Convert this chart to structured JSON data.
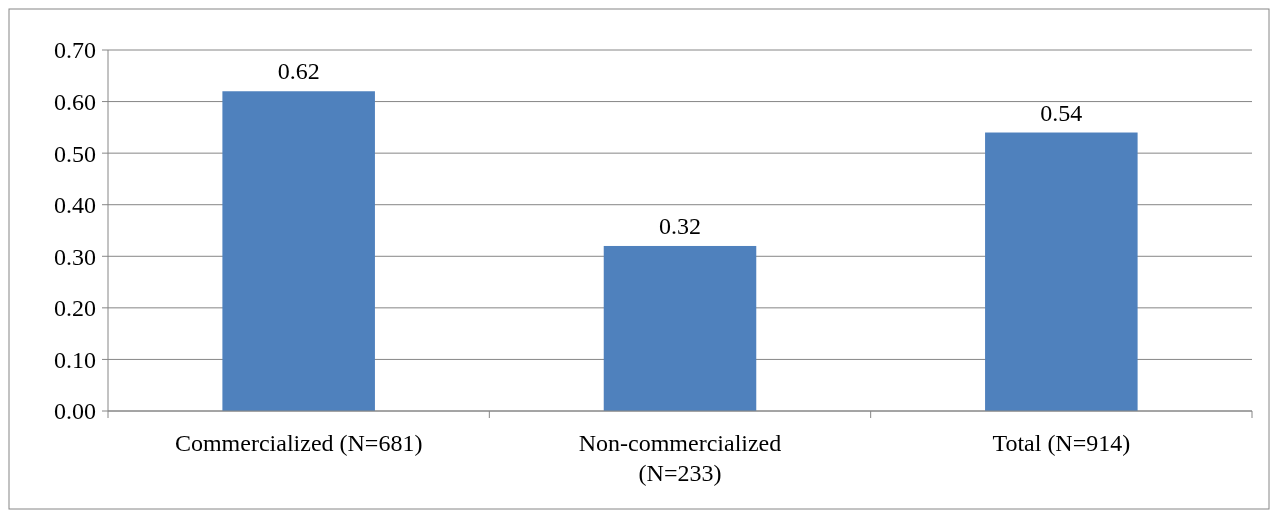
{
  "chart_data": {
    "type": "bar",
    "categories": [
      "Commercialized (N=681)",
      "Non-commercialized (N=233)",
      "Total (N=914)"
    ],
    "values": [
      0.62,
      0.32,
      0.54
    ],
    "color": "#4f81bd",
    "ylim": [
      0,
      0.7
    ],
    "yticks": [
      {
        "value": 0,
        "label": "0.00"
      },
      {
        "value": 0.1,
        "label": "0.10"
      },
      {
        "value": 0.2,
        "label": "0.20"
      },
      {
        "value": 0.3,
        "label": "0.30"
      },
      {
        "value": 0.4,
        "label": "0.40"
      },
      {
        "value": 0.5,
        "label": "0.50"
      },
      {
        "value": 0.6,
        "label": "0.60"
      },
      {
        "value": 0.7,
        "label": "0.70"
      }
    ],
    "grid": "y",
    "data_labels": true
  }
}
